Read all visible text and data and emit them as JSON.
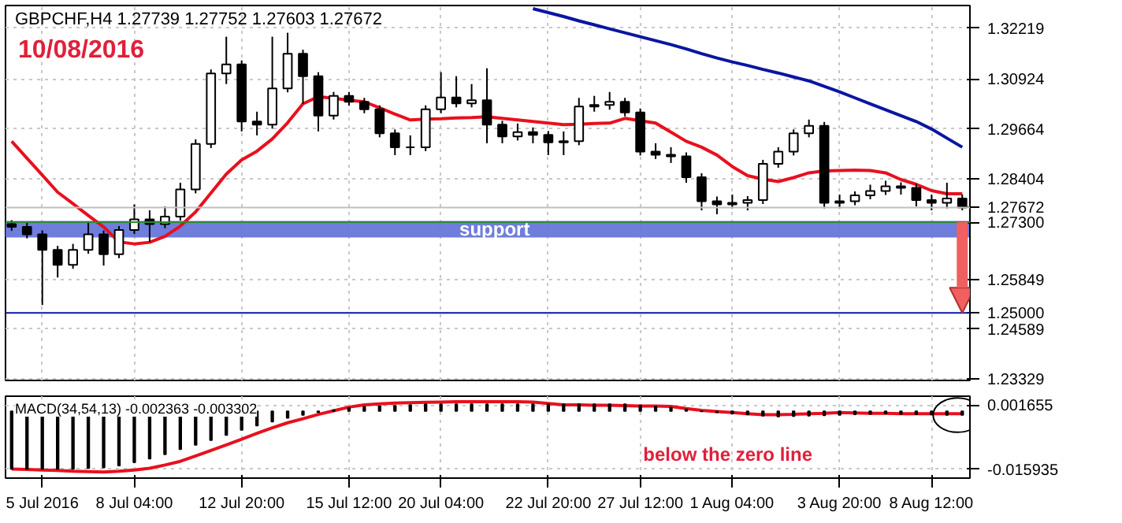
{
  "chart_data": [
    {
      "type": "candlestick",
      "title": "GBPCHF,H4 1.27739 1.27752 1.27603 1.27672",
      "subtitle": "10/08/2016",
      "categories": [
        null,
        null,
        null,
        null,
        null,
        null,
        null,
        null,
        null,
        null,
        null,
        null,
        null,
        null,
        null,
        null,
        null,
        null,
        null,
        null,
        null,
        null,
        null,
        null,
        null,
        null,
        null,
        null,
        null,
        null,
        null,
        null,
        null,
        null,
        null,
        null,
        null,
        null,
        null,
        null,
        null,
        null,
        null,
        null,
        null,
        null,
        null,
        null,
        null,
        null,
        null,
        null,
        null,
        null,
        null,
        null,
        null,
        null,
        null,
        null,
        null,
        null,
        null
      ],
      "ohlc": [
        [
          1.2725,
          1.2735,
          1.2708,
          1.2718
        ],
        [
          1.2718,
          1.2728,
          1.2689,
          1.2699
        ],
        [
          1.2699,
          1.2709,
          1.252,
          1.266
        ],
        [
          1.266,
          1.267,
          1.259,
          1.2622
        ],
        [
          1.2622,
          1.2675,
          1.2612,
          1.266
        ],
        [
          1.266,
          1.273,
          1.265,
          1.2699
        ],
        [
          1.2699,
          1.2709,
          1.262,
          1.2649
        ],
        [
          1.2649,
          1.272,
          1.2639,
          1.271
        ],
        [
          1.271,
          1.2775,
          1.27,
          1.2737
        ],
        [
          1.2737,
          1.276,
          1.268,
          1.2725
        ],
        [
          1.2725,
          1.277,
          1.2715,
          1.2744
        ],
        [
          1.2744,
          1.283,
          1.2734,
          1.2813
        ],
        [
          1.2813,
          1.294,
          1.2803,
          1.2928
        ],
        [
          1.2928,
          1.3117,
          1.2918,
          1.3107
        ],
        [
          1.3107,
          1.32,
          1.308,
          1.313
        ],
        [
          1.313,
          1.314,
          1.296,
          1.2985
        ],
        [
          1.2985,
          1.301,
          1.295,
          1.2977
        ],
        [
          1.2977,
          1.32,
          1.2967,
          1.3069
        ],
        [
          1.3069,
          1.321,
          1.3059,
          1.3157
        ],
        [
          1.3157,
          1.3167,
          1.303,
          1.31
        ],
        [
          1.31,
          1.311,
          1.296,
          1.3
        ],
        [
          1.3,
          1.306,
          1.299,
          1.305
        ],
        [
          1.305,
          1.306,
          1.3025,
          1.3035
        ],
        [
          1.3035,
          1.3045,
          1.3006,
          1.3016
        ],
        [
          1.3016,
          1.3026,
          1.2945,
          1.2955
        ],
        [
          1.2955,
          1.2965,
          1.29,
          1.292
        ],
        [
          1.292,
          1.295,
          1.29,
          1.292
        ],
        [
          1.292,
          1.3026,
          1.291,
          1.3016
        ],
        [
          1.3016,
          1.311,
          1.3006,
          1.3046
        ],
        [
          1.3046,
          1.31,
          1.3021,
          1.3031
        ],
        [
          1.3031,
          1.308,
          1.3021,
          1.3039
        ],
        [
          1.3039,
          1.312,
          1.293,
          1.2977
        ],
        [
          1.2977,
          1.2987,
          1.293,
          1.2947
        ],
        [
          1.2947,
          1.298,
          1.2937,
          1.2958
        ],
        [
          1.2958,
          1.297,
          1.293,
          1.2951
        ],
        [
          1.2951,
          1.2961,
          1.29,
          1.2932
        ],
        [
          1.2932,
          1.296,
          1.29,
          1.2935
        ],
        [
          1.2935,
          1.3045,
          1.2925,
          1.3023
        ],
        [
          1.3023,
          1.305,
          1.301,
          1.3027
        ],
        [
          1.3027,
          1.306,
          1.3015,
          1.3035
        ],
        [
          1.3035,
          1.3045,
          1.2998,
          1.3008
        ],
        [
          1.3008,
          1.3018,
          1.2899,
          1.2909
        ],
        [
          1.2909,
          1.293,
          1.289,
          1.2901
        ],
        [
          1.2901,
          1.292,
          1.288,
          1.2897
        ],
        [
          1.2897,
          1.2907,
          1.283,
          1.2844
        ],
        [
          1.2844,
          1.2854,
          1.276,
          1.2783
        ],
        [
          1.2783,
          1.2795,
          1.275,
          1.2775
        ],
        [
          1.2775,
          1.28,
          1.2765,
          1.2779
        ],
        [
          1.2779,
          1.2796,
          1.276,
          1.2786
        ],
        [
          1.2786,
          1.2888,
          1.2776,
          1.2878
        ],
        [
          1.2878,
          1.292,
          1.2868,
          1.2909
        ],
        [
          1.2909,
          1.2965,
          1.2899,
          1.2955
        ],
        [
          1.2955,
          1.299,
          1.2945,
          1.2974
        ],
        [
          1.2974,
          1.2984,
          1.2765,
          1.2779
        ],
        [
          1.2779,
          1.28,
          1.2765,
          1.2783
        ],
        [
          1.2783,
          1.2808,
          1.2773,
          1.2798
        ],
        [
          1.2798,
          1.2825,
          1.2788,
          1.2809
        ],
        [
          1.2809,
          1.2835,
          1.2799,
          1.2821
        ],
        [
          1.2821,
          1.2831,
          1.28,
          1.2817
        ],
        [
          1.2817,
          1.2827,
          1.277,
          1.2786
        ],
        [
          1.2786,
          1.28,
          1.276,
          1.2779
        ],
        [
          1.2779,
          1.283,
          1.2765,
          1.279
        ],
        [
          1.279,
          1.28,
          1.276,
          1.2767
        ]
      ],
      "series": [
        {
          "type": "line",
          "color": "#e8101e",
          "values": [
            1.2935,
            1.2892,
            1.2849,
            1.2806,
            1.2777,
            1.2747,
            1.2718,
            1.268,
            1.2675,
            1.2679,
            1.2694,
            1.272,
            1.2756,
            1.2804,
            1.2852,
            1.2888,
            1.291,
            1.2941,
            1.2982,
            1.303,
            1.3048,
            1.3044,
            1.3039,
            1.3035,
            1.302,
            1.3004,
            1.2989,
            1.2991,
            1.2992,
            1.2994,
            1.2995,
            1.2997,
            1.2993,
            1.2989,
            1.2985,
            1.2981,
            1.2977,
            1.2978,
            1.298,
            1.2981,
            1.2993,
            1.2987,
            1.2981,
            1.2958,
            1.2935,
            1.292,
            1.29,
            1.2871,
            1.2848,
            1.2839,
            1.2833,
            1.2843,
            1.2855,
            1.286,
            1.2861,
            1.2862,
            1.2861,
            1.2855,
            1.2838,
            1.2826,
            1.281,
            1.2802,
            1.2802
          ]
        },
        {
          "type": "line",
          "color": "#0a16a0",
          "values": [
            null,
            null,
            null,
            null,
            null,
            null,
            null,
            null,
            null,
            null,
            null,
            null,
            null,
            null,
            null,
            null,
            null,
            null,
            null,
            null,
            null,
            null,
            null,
            null,
            null,
            null,
            null,
            null,
            null,
            null,
            null,
            null,
            null,
            null,
            1.3271,
            1.3261,
            1.3251,
            1.324,
            1.323,
            1.322,
            1.321,
            1.32,
            1.319,
            1.318,
            1.3169,
            1.3157,
            1.3146,
            1.3136,
            1.3127,
            1.3117,
            1.3108,
            1.3098,
            1.3088,
            1.3074,
            1.306,
            1.3045,
            1.303,
            1.3015,
            1.3,
            1.2985,
            1.2966,
            1.2943,
            1.292
          ]
        }
      ],
      "ylim": [
        1.2329,
        1.3279
      ],
      "yticks": [
        1.32219,
        1.30924,
        1.29664,
        1.28404,
        1.25849,
        1.24589,
        1.23329
      ],
      "tick_labels": "y",
      "grid": true,
      "ref_lines": [
        {
          "axis": "y",
          "value": 1.27672,
          "label": "1.27672",
          "color": "#c0c0c0"
        },
        {
          "axis": "y",
          "value": 1.273,
          "label": "1.27300",
          "color": "#2e8b2e"
        },
        {
          "axis": "y",
          "value": 1.25,
          "label": "1.25000",
          "color": "#0a16a0"
        }
      ],
      "bands": [
        {
          "axis": "y",
          "from": 1.2691,
          "to": 1.2733,
          "label": "support",
          "color": "#5f6fd8"
        }
      ]
    },
    {
      "type": "bar",
      "title": "MACD(34,54,13) -0.002363 -0.003302",
      "annotations": [
        "below the zero line"
      ],
      "categories": [
        null,
        null,
        "5 Jul 2016",
        null,
        null,
        null,
        null,
        null,
        "8 Jul 04:00",
        null,
        null,
        null,
        null,
        null,
        null,
        "12 Jul 20:00",
        null,
        null,
        null,
        null,
        null,
        null,
        "15 Jul 12:00",
        null,
        null,
        null,
        null,
        null,
        "20 Jul 04:00",
        null,
        null,
        null,
        null,
        null,
        null,
        "22 Jul 20:00",
        null,
        null,
        null,
        null,
        null,
        "27 Jul 12:00",
        null,
        null,
        null,
        null,
        null,
        "1 Aug 04:00",
        null,
        null,
        null,
        null,
        null,
        null,
        "3 Aug 20:00",
        null,
        null,
        null,
        null,
        null,
        "8 Aug 12:00",
        null,
        null
      ],
      "series": [
        {
          "type": "bar",
          "color": "#000000",
          "values": [
            -0.0159,
            -0.0159,
            -0.0159,
            -0.0159,
            -0.0159,
            -0.0157,
            -0.0155,
            -0.015,
            -0.0141,
            -0.0131,
            -0.0119,
            -0.0105,
            -0.0093,
            -0.008,
            -0.0066,
            -0.0052,
            -0.004,
            -0.0029,
            -0.0019,
            -0.0011,
            -0.0003,
            0.0003,
            0.0009,
            0.0012,
            0.0014,
            0.0015,
            0.0017,
            0.0019,
            0.0019,
            0.0019,
            0.0019,
            0.0019,
            0.0019,
            0.0019,
            0.0019,
            0.0019,
            0.0019,
            0.0019,
            0.0019,
            0.0019,
            0.0019,
            0.0016,
            0.0013,
            0.001,
            0.0005,
            -0.0001,
            -0.0004,
            -0.0007,
            -0.001,
            -0.0013,
            -0.0015,
            -0.0014,
            -0.0013,
            -0.0012,
            -0.0011,
            -0.0009,
            -0.0008,
            -0.0007,
            -0.0008,
            -0.0009,
            -0.001,
            -0.0011,
            -0.0011
          ]
        },
        {
          "type": "line",
          "color": "#e8101e",
          "values": [
            -0.0159,
            -0.016,
            -0.0162,
            -0.0163,
            -0.0165,
            -0.0166,
            -0.0167,
            -0.0165,
            -0.0162,
            -0.0157,
            -0.0148,
            -0.0138,
            -0.0123,
            -0.0108,
            -0.0093,
            -0.0077,
            -0.0061,
            -0.0046,
            -0.0032,
            -0.0021,
            -0.0009,
            0.0001,
            0.0011,
            0.0017,
            0.002,
            0.0022,
            0.0023,
            0.0024,
            0.0025,
            0.0026,
            0.0026,
            0.0026,
            0.0026,
            0.0026,
            0.0025,
            0.0021,
            0.0017,
            0.0017,
            0.0016,
            0.0016,
            0.0015,
            0.0014,
            0.0014,
            0.0013,
            0.0007,
            0.0002,
            -0.0001,
            -0.0004,
            -0.0007,
            -0.001,
            -0.001,
            -0.0009,
            -0.0007,
            -0.0006,
            -0.0004,
            -0.0005,
            -0.0006,
            -0.0006,
            -0.0007,
            -0.0007,
            -0.0007,
            -0.0007,
            -0.0007
          ]
        }
      ],
      "ylim": [
        -0.0184,
        0.0041
      ],
      "yticks": [
        -0.015935,
        0.001655
      ],
      "grid": true
    }
  ]
}
